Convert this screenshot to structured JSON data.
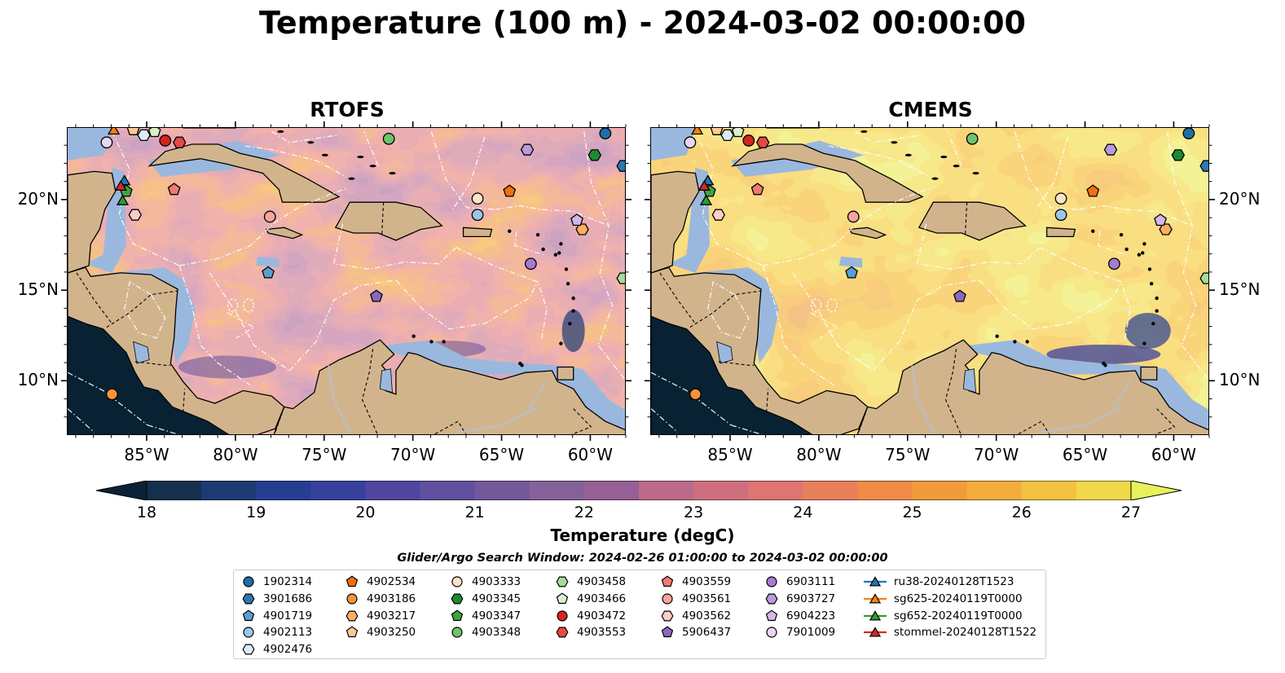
{
  "title": "Temperature (100 m) - 2024-03-02 00:00:00",
  "panels": [
    {
      "title": "RTOFS",
      "palette": "rtofs"
    },
    {
      "title": "CMEMS",
      "palette": "cmems"
    }
  ],
  "axes": {
    "lon_ticks": [
      "85°W",
      "80°W",
      "75°W",
      "70°W",
      "65°W",
      "60°W"
    ],
    "lat_ticks": [
      "20°N",
      "15°N",
      "10°N"
    ],
    "lon_range": [
      -89.5,
      -58.0
    ],
    "lat_range": [
      7.0,
      24.0
    ]
  },
  "colorbar": {
    "title": "Temperature (degC)",
    "min": 18,
    "max": 27,
    "ticks": [
      "18",
      "19",
      "20",
      "21",
      "22",
      "23",
      "24",
      "25",
      "26",
      "27"
    ],
    "extend": "both",
    "colors": [
      "#0b2236",
      "#14304d",
      "#1c3b72",
      "#263e92",
      "#38409e",
      "#4f46a0",
      "#61509e",
      "#73599c",
      "#85619a",
      "#965f95",
      "#a96593",
      "#bc6a89",
      "#cf6f7e",
      "#de7570",
      "#e8805b",
      "#ee8c48",
      "#f29b3b",
      "#f4ad3a",
      "#f3c141",
      "#f0d84a",
      "#e9f05b"
    ]
  },
  "colors": {
    "land": "#d2b48c",
    "shelf": "#9ab8de",
    "deep_ocean": "#082233",
    "rtofs_base": "#f0913e",
    "cmems_base": "#f4c43c"
  },
  "search_window": "Glider/Argo Search Window: 2024-02-26 01:00:00 to 2024-03-02 00:00:00",
  "legend": [
    {
      "label": "1902314",
      "marker": "circle",
      "color": "#1f6ea8"
    },
    {
      "label": "3901686",
      "marker": "hexagon",
      "color": "#2a78b5"
    },
    {
      "label": "4901719",
      "marker": "pentagon",
      "color": "#5a9fd0"
    },
    {
      "label": "4902113",
      "marker": "circle",
      "color": "#9cc6e6"
    },
    {
      "label": "4902476",
      "marker": "hexagon",
      "color": "#dcebf7"
    },
    {
      "label": "4902534",
      "marker": "pentagon",
      "color": "#ee7014"
    },
    {
      "label": "4903186",
      "marker": "circle",
      "color": "#f7923a"
    },
    {
      "label": "4903217",
      "marker": "hexagon",
      "color": "#fbae62"
    },
    {
      "label": "4903250",
      "marker": "pentagon",
      "color": "#fcc994"
    },
    {
      "label": "4903333",
      "marker": "circle",
      "color": "#fde3c6"
    },
    {
      "label": "4903345",
      "marker": "hexagon",
      "color": "#1e8a2e"
    },
    {
      "label": "4903347",
      "marker": "pentagon",
      "color": "#3ca53f"
    },
    {
      "label": "4903348",
      "marker": "circle",
      "color": "#6dc46a"
    },
    {
      "label": "4903458",
      "marker": "hexagon",
      "color": "#a3dc98"
    },
    {
      "label": "4903466",
      "marker": "pentagon",
      "color": "#d8f1cc"
    },
    {
      "label": "4903472",
      "marker": "circle",
      "color": "#d42420"
    },
    {
      "label": "4903553",
      "marker": "hexagon",
      "color": "#e34a44"
    },
    {
      "label": "4903559",
      "marker": "pentagon",
      "color": "#f07a70"
    },
    {
      "label": "4903561",
      "marker": "circle",
      "color": "#f7a49c"
    },
    {
      "label": "4903562",
      "marker": "hexagon",
      "color": "#fbcdc6"
    },
    {
      "label": "5906437",
      "marker": "pentagon",
      "color": "#8a68c0"
    },
    {
      "label": "6903111",
      "marker": "circle",
      "color": "#a57bcf"
    },
    {
      "label": "6903727",
      "marker": "hexagon",
      "color": "#bb99dc"
    },
    {
      "label": "6904223",
      "marker": "pentagon",
      "color": "#d2b7e8"
    },
    {
      "label": "7901009",
      "marker": "circle",
      "color": "#e8d6f3"
    },
    {
      "label": "ru38-20240128T1523",
      "marker": "triangle-line",
      "color": "#1f77b4"
    },
    {
      "label": "sg625-20240119T0000",
      "marker": "triangle-line",
      "color": "#ff7f0e"
    },
    {
      "label": "sg652-20240119T0000",
      "marker": "triangle-line",
      "color": "#2ca02c"
    },
    {
      "label": "stommel-20240128T1522",
      "marker": "triangle-line",
      "color": "#d62728"
    }
  ],
  "platforms": [
    {
      "id": "1902314",
      "lon": -59.2,
      "lat": 23.7
    },
    {
      "id": "3901686",
      "lon": -58.2,
      "lat": 21.9
    },
    {
      "id": "4901719",
      "lon": -78.2,
      "lat": 16.0
    },
    {
      "id": "4902113",
      "lon": -66.4,
      "lat": 19.2
    },
    {
      "id": "4902476",
      "lon": -85.2,
      "lat": 23.6
    },
    {
      "id": "4902534",
      "lon": -64.6,
      "lat": 20.5
    },
    {
      "id": "4903186",
      "lon": -87.0,
      "lat": 9.3
    },
    {
      "id": "4903217",
      "lon": -60.5,
      "lat": 18.4
    },
    {
      "id": "4903250",
      "lon": -85.8,
      "lat": 23.9
    },
    {
      "id": "4903333",
      "lon": -66.4,
      "lat": 20.1
    },
    {
      "id": "4903345",
      "lon": -59.8,
      "lat": 22.5
    },
    {
      "id": "4903347",
      "lon": -86.2,
      "lat": 20.5
    },
    {
      "id": "4903348",
      "lon": -71.4,
      "lat": 23.4
    },
    {
      "id": "4903458",
      "lon": -58.2,
      "lat": 15.7
    },
    {
      "id": "4903466",
      "lon": -84.6,
      "lat": 23.8
    },
    {
      "id": "4903472",
      "lon": -84.0,
      "lat": 23.3
    },
    {
      "id": "4903553",
      "lon": -83.2,
      "lat": 23.2
    },
    {
      "id": "4903559",
      "lon": -83.5,
      "lat": 20.6
    },
    {
      "id": "4903561",
      "lon": -78.1,
      "lat": 19.1
    },
    {
      "id": "4903562",
      "lon": -85.7,
      "lat": 19.2
    },
    {
      "id": "5906437",
      "lon": -72.1,
      "lat": 14.7
    },
    {
      "id": "6903111",
      "lon": -63.4,
      "lat": 16.5
    },
    {
      "id": "6903727",
      "lon": -63.6,
      "lat": 22.8
    },
    {
      "id": "6904223",
      "lon": -60.8,
      "lat": 18.9
    },
    {
      "id": "7901009",
      "lon": -87.3,
      "lat": 23.2
    },
    {
      "id": "ru38-20240128T1523",
      "lon": -86.3,
      "lat": 21.1
    },
    {
      "id": "sg625-20240119T0000",
      "lon": -86.9,
      "lat": 23.9
    },
    {
      "id": "sg652-20240119T0000",
      "lon": -86.4,
      "lat": 20.0
    },
    {
      "id": "stommel-20240128T1522",
      "lon": -86.5,
      "lat": 20.8
    }
  ]
}
